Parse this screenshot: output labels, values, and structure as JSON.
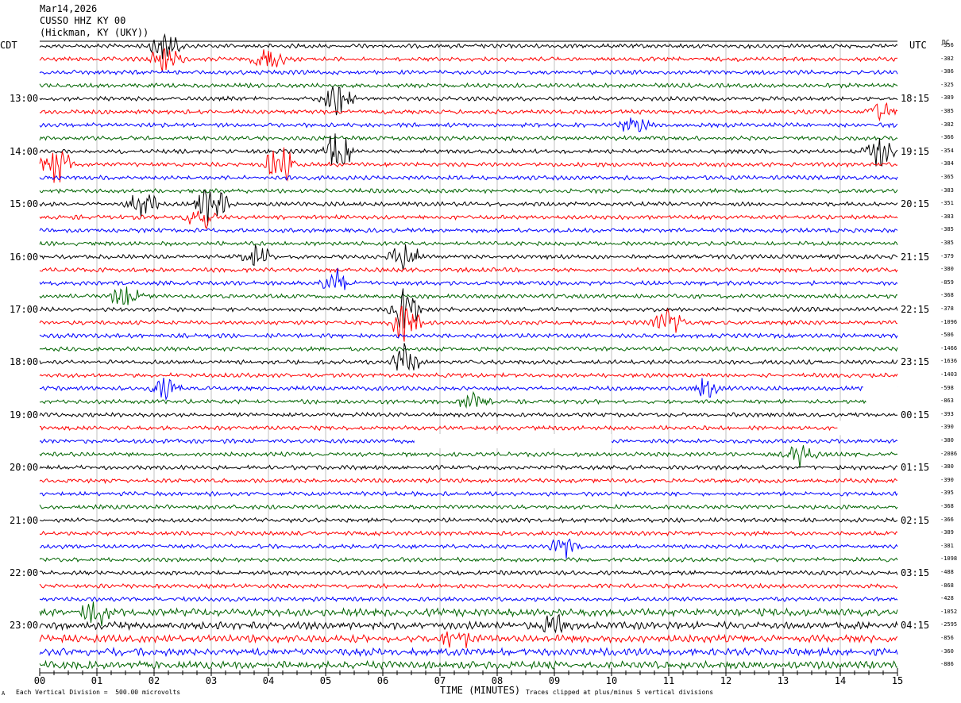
{
  "header": {
    "date": "Mar14,2026",
    "station": "CUSSO HHZ KY 00",
    "location": "(Hickman, KY (UKY))"
  },
  "left_axis_title": "CDT",
  "right_axis_title": "UTC",
  "dc_title": "DC",
  "footer": {
    "scale_note": "Each Vertical Division =  500.00 microvolts",
    "clip_note": "Traces clipped at plus/minus 5 vertical divisions",
    "corner_mark": "A"
  },
  "colors": {
    "trace": [
      "#000000",
      "#ff0000",
      "#0000ff",
      "#006400"
    ],
    "gap": "#ffffff"
  },
  "chart_data": {
    "type": "line",
    "title": "",
    "xlabel": "TIME (MINUTES)",
    "x_ticks": [
      "00",
      "01",
      "02",
      "03",
      "04",
      "05",
      "06",
      "07",
      "08",
      "09",
      "10",
      "11",
      "12",
      "13",
      "14",
      "15"
    ],
    "xlim": [
      0,
      15
    ],
    "trace_count": 48,
    "trace_minutes": 15,
    "left_hour_labels": [
      "13:00",
      "14:00",
      "15:00",
      "16:00",
      "17:00",
      "18:00",
      "19:00",
      "20:00",
      "21:00",
      "22:00",
      "23:00"
    ],
    "right_hour_labels": [
      "18:15",
      "19:15",
      "20:15",
      "21:15",
      "22:15",
      "23:15",
      "00:15",
      "01:15",
      "02:15",
      "03:15",
      "04:15"
    ],
    "dc_offsets": [
      "-356",
      "-382",
      "-386",
      "-325",
      "-389",
      "-385",
      "-382",
      "-366",
      "-354",
      "-384",
      "-365",
      "-383",
      "-351",
      "-383",
      "-385",
      "-385",
      "-379",
      "-380",
      "-859",
      "-368",
      "-378",
      "-1096",
      "-506",
      "-1466",
      "-1636",
      "-1403",
      "-598",
      "-863",
      "-393",
      "-390",
      "-380",
      "-2086",
      "-380",
      "-390",
      "-395",
      "-368",
      "-366",
      "-389",
      "-381",
      "-1098",
      "-488",
      "-868",
      "-428",
      "-1052",
      "-2595",
      "-856",
      "-360",
      "-886"
    ],
    "data_gaps": [
      {
        "trace": 26,
        "start_min": 14.4,
        "end_min": 15.0
      },
      {
        "trace": 27,
        "start_min": 14.45,
        "end_min": 15.0
      },
      {
        "trace": 29,
        "start_min": 13.95,
        "end_min": 15.0
      },
      {
        "trace": 30,
        "start_min": 6.55,
        "end_min": 10.0
      }
    ]
  }
}
